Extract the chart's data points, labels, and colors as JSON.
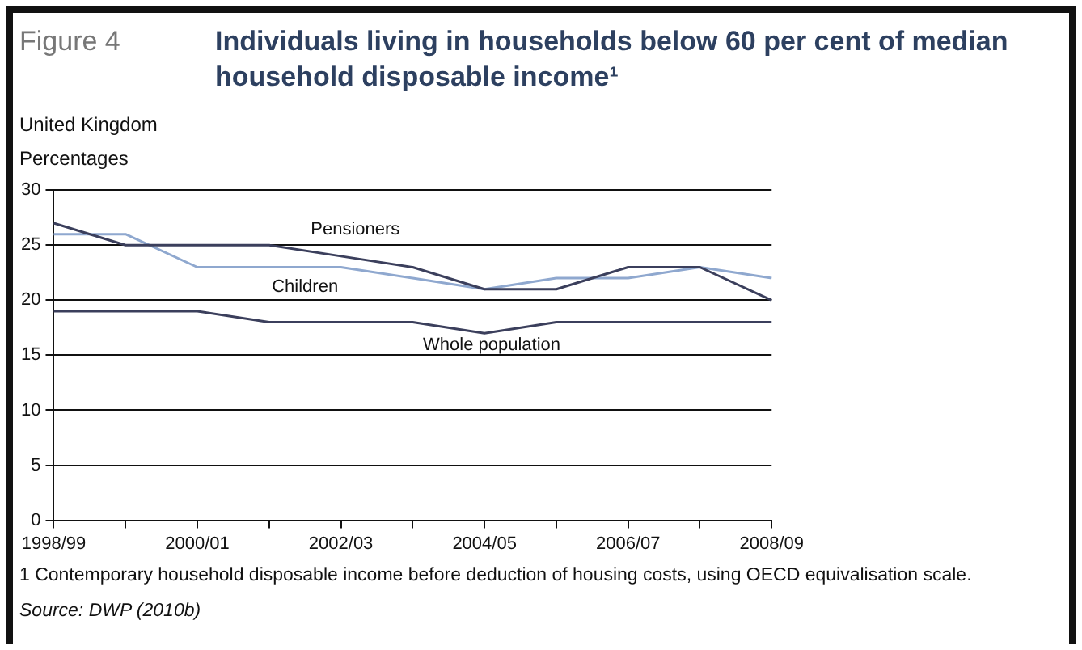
{
  "chart_data": {
    "type": "line",
    "title": "Individuals living in households below 60 per cent of median household disposable income¹",
    "subtitle": "United Kingdom",
    "ylabel": "Percentages",
    "annotations": [
      "Figure 4",
      "1 Contemporary household disposable income before deduction of housing costs, using OECD equivalisation scale.",
      "Source: DWP (2010b)"
    ],
    "categories": [
      "1998/99",
      null,
      "2000/01",
      null,
      "2002/03",
      null,
      "2004/05",
      null,
      "2006/07",
      null,
      "2008/09"
    ],
    "series": [
      {
        "name": "Pensioners",
        "color": "#3b3f5c",
        "values": [
          27,
          25,
          25,
          25,
          24,
          23,
          21,
          21,
          23,
          23,
          20
        ]
      },
      {
        "name": "Children",
        "color": "#8fa8cf",
        "values": [
          26,
          26,
          23,
          23,
          23,
          22,
          21,
          22,
          22,
          23,
          22
        ]
      },
      {
        "name": "Whole population",
        "color": "#3b3f5c",
        "values": [
          19,
          19,
          19,
          18,
          18,
          18,
          17,
          18,
          18,
          18,
          18
        ]
      }
    ],
    "ylim": [
      0,
      30
    ],
    "yticks": [
      0,
      5,
      10,
      15,
      20,
      25,
      30
    ],
    "grid": "y",
    "legend": false,
    "marker": "none",
    "line_style": "solid"
  }
}
